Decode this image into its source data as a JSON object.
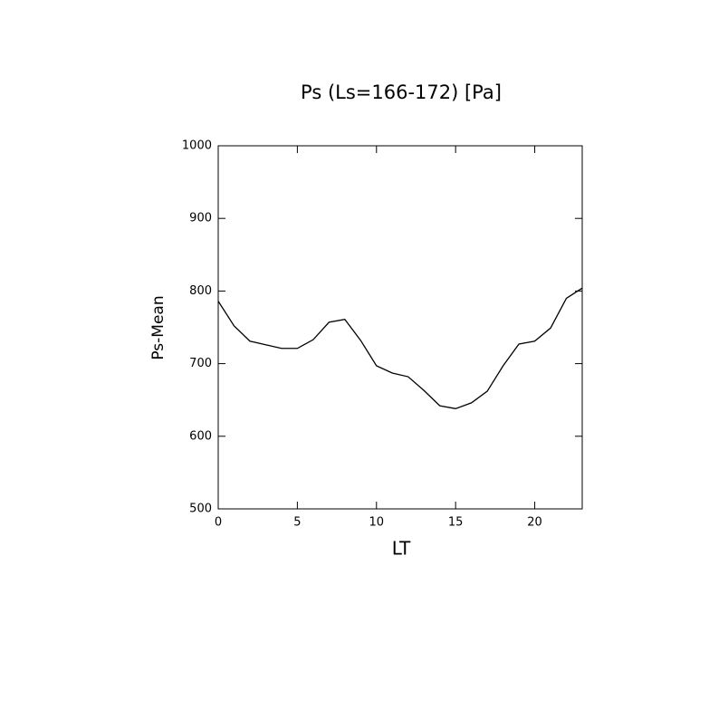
{
  "chart_data": {
    "type": "line",
    "title": "Ps (Ls=166-172) [Pa]",
    "x_label": "LT",
    "y_label": "Ps-Mean",
    "x": [
      0,
      1,
      2,
      3,
      4,
      5,
      6,
      7,
      8,
      9,
      10,
      11,
      12,
      13,
      14,
      15,
      16,
      17,
      18,
      19,
      20,
      21,
      22,
      23
    ],
    "series": [
      {
        "name": "Ps-Mean",
        "color": "#000000",
        "values": [
          786,
          752,
          731,
          726,
          721,
          721,
          733,
          757,
          761,
          732,
          697,
          687,
          682,
          663,
          642,
          638,
          646,
          662,
          697,
          727,
          731,
          749,
          790,
          804
        ]
      }
    ],
    "xlim": [
      0,
      23
    ],
    "xticks": [
      0,
      5,
      10,
      15,
      20
    ],
    "ylim": [
      500,
      1000
    ],
    "yticks": [
      500,
      600,
      700,
      800,
      900,
      1000
    ]
  }
}
